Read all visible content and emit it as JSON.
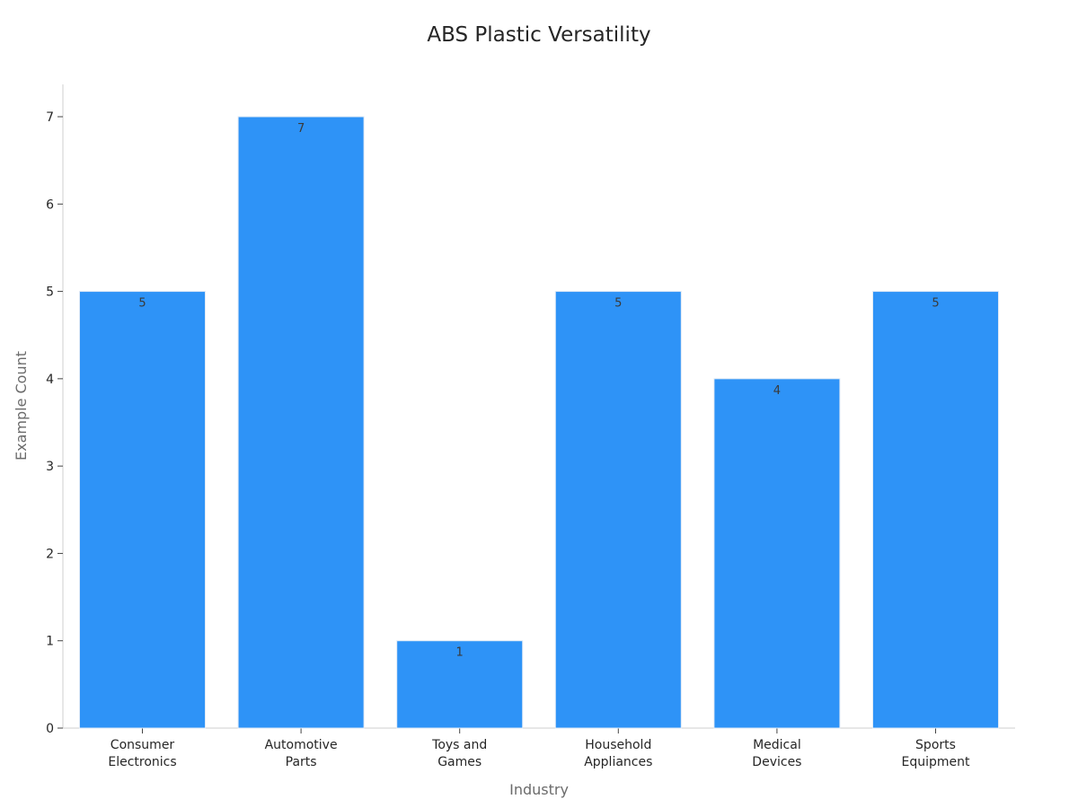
{
  "chart_data": {
    "type": "bar",
    "title": "ABS Plastic Versatility",
    "xlabel": "Industry",
    "ylabel": "Example Count",
    "categories": [
      [
        "Consumer",
        "Electronics"
      ],
      [
        "Automotive",
        "Parts"
      ],
      [
        "Toys and",
        "Games"
      ],
      [
        "Household",
        "Appliances"
      ],
      [
        "Medical",
        "Devices"
      ],
      [
        "Sports",
        "Equipment"
      ]
    ],
    "values": [
      5,
      7,
      1,
      5,
      4,
      5
    ],
    "data_labels": [
      "5",
      "7",
      "1",
      "5",
      "4",
      "5"
    ],
    "ylim": [
      0,
      7.35
    ],
    "yticks": [
      0,
      1,
      2,
      3,
      4,
      5,
      6,
      7
    ],
    "grid": false,
    "bar_color": "#2e93f7"
  }
}
